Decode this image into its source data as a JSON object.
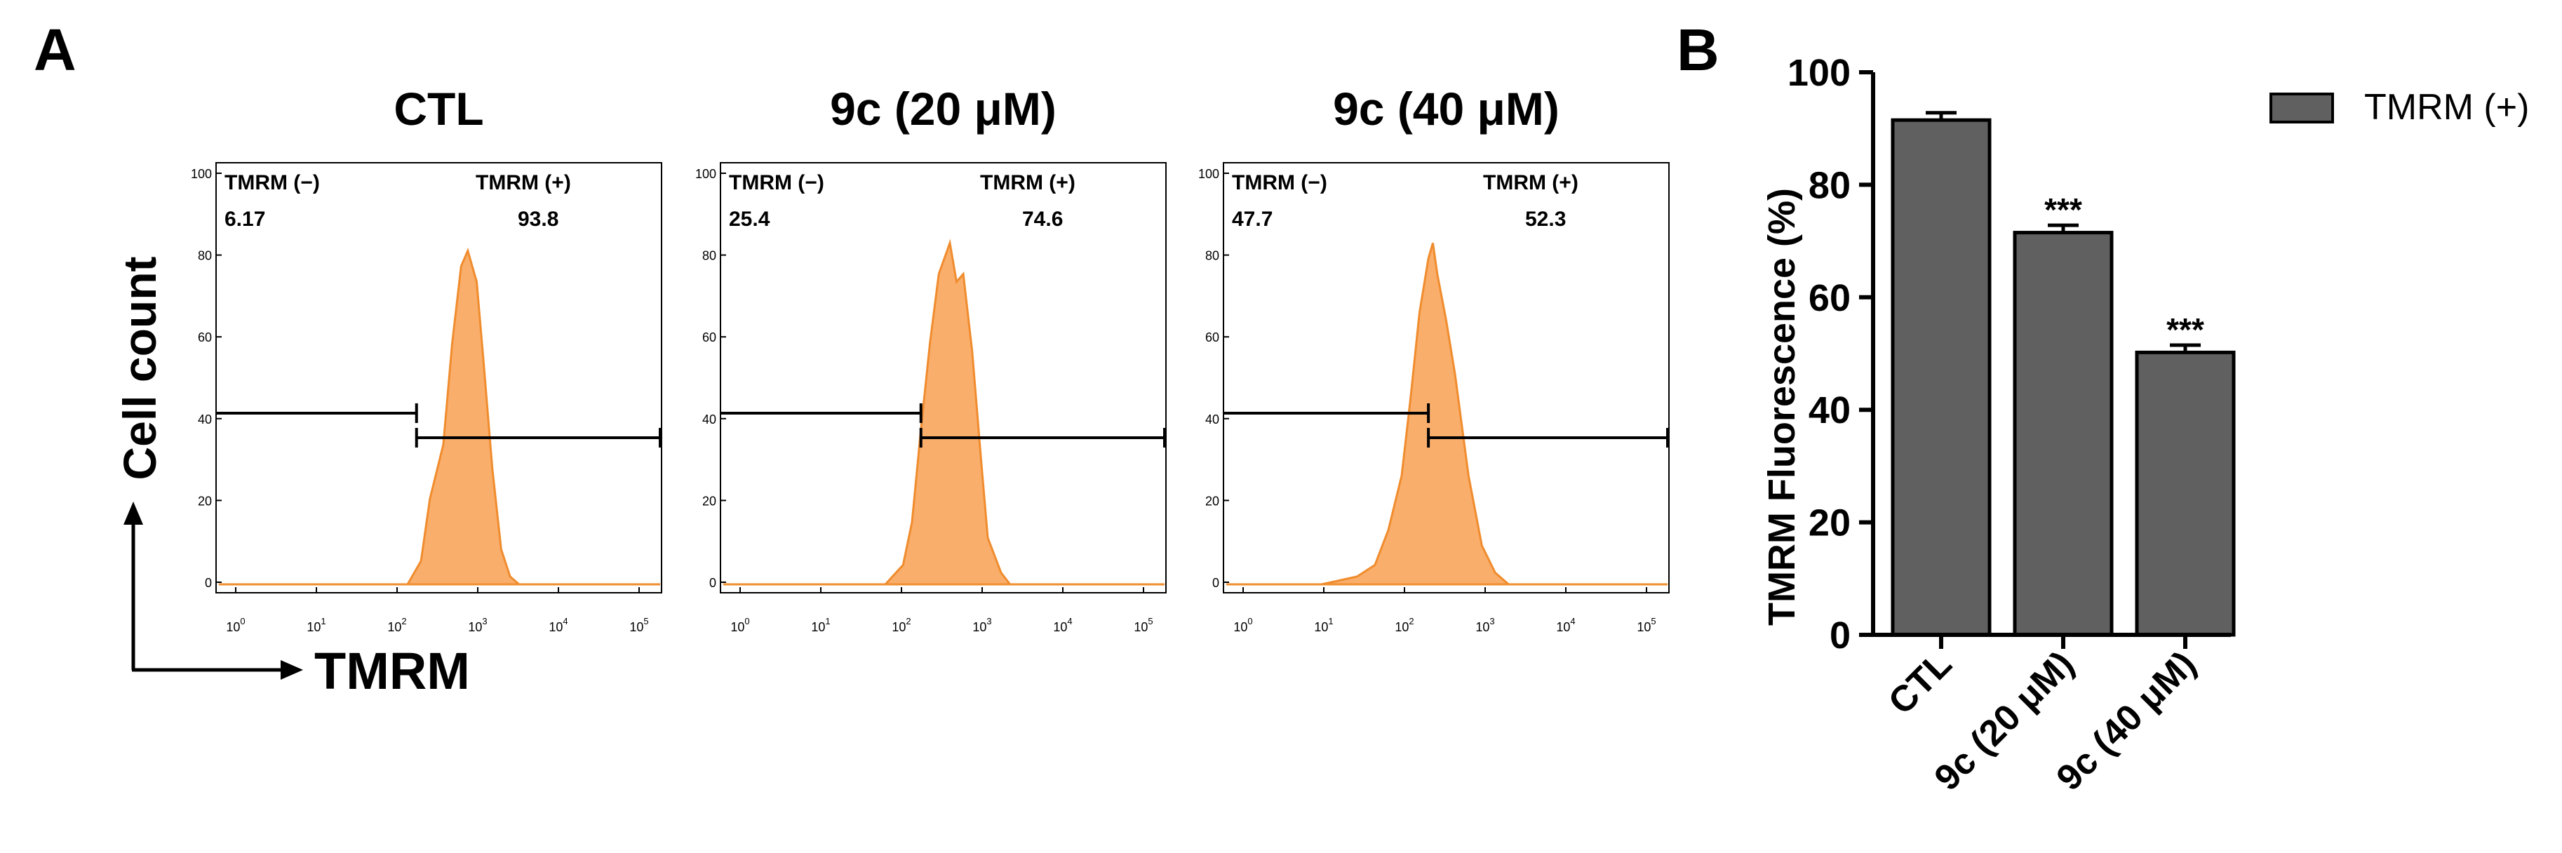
{
  "panel_labels": {
    "a": "A",
    "b": "B"
  },
  "flow_axes": {
    "ylabel": "Cell count",
    "xlabel": "TMRM",
    "y_ticks": [
      "100",
      "80",
      "60",
      "40",
      "20",
      "0"
    ],
    "x_tick_base": "10",
    "x_tick_exponents": [
      "0",
      "1",
      "2",
      "3",
      "4",
      "5"
    ],
    "gate_neg_label": "TMRM (−)",
    "gate_pos_label": "TMRM (+)"
  },
  "histograms": [
    {
      "title": "CTL",
      "neg_pct": "6.17",
      "pos_pct": "93.8"
    },
    {
      "title": "9c (20 μM)",
      "neg_pct": "25.4",
      "pos_pct": "74.6"
    },
    {
      "title": "9c (40 μM)",
      "neg_pct": "47.7",
      "pos_pct": "52.3"
    }
  ],
  "colors": {
    "histogram_fill": "#f9ae6c",
    "histogram_stroke": "#f08c2e",
    "bar_fill": "#606060",
    "ink": "#000000"
  },
  "chart_data": {
    "type": "bar",
    "title": "",
    "xlabel": "",
    "ylabel": "TMRM Fluorescence (%)",
    "ylim": [
      0,
      100
    ],
    "yticks": [
      "0",
      "20",
      "40",
      "60",
      "80",
      "100"
    ],
    "categories": [
      "CTL",
      "9c (20 μM)",
      "9c (40 μM)"
    ],
    "series": [
      {
        "name": "TMRM (+)",
        "values": [
          91.5,
          71.5,
          50.2
        ],
        "errors": [
          1.3,
          1.3,
          1.3
        ]
      }
    ],
    "annotations": [
      "",
      "***",
      "***"
    ],
    "legend": {
      "label": "TMRM (+)",
      "placement": "top-right"
    }
  }
}
